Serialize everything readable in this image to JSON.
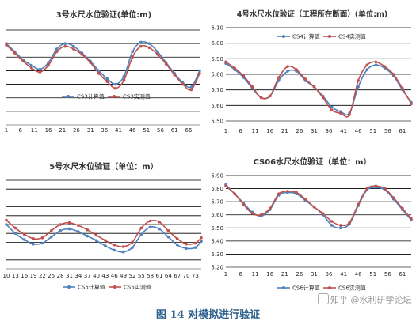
{
  "caption": "图 14 对模拟进行验证",
  "watermark": "知乎 @水利研学论坛",
  "colors": {
    "computed": "#4f81bd",
    "measured": "#c0504d",
    "grid": "#000000"
  },
  "chart_data": [
    {
      "type": "line",
      "title": "3号水尺水位验证(单位:m)",
      "show_y_ticks": false,
      "x_ticks": [
        1,
        6,
        11,
        16,
        21,
        26,
        31,
        36,
        41,
        46,
        51,
        56,
        61,
        66
      ],
      "xlim": [
        1,
        70
      ],
      "ylim": [
        0,
        7
      ],
      "grid_y": [
        1,
        2,
        3,
        4,
        5,
        6,
        7
      ],
      "legend": "bottom-center",
      "series": [
        {
          "name": "CS3计算值",
          "x": [
            1,
            4,
            7,
            10,
            13,
            16,
            19,
            22,
            25,
            28,
            31,
            34,
            37,
            40,
            43,
            46,
            49,
            52,
            55,
            58,
            61,
            64,
            67,
            70
          ],
          "y": [
            6.0,
            5.4,
            4.8,
            4.4,
            4.1,
            4.6,
            5.6,
            6.0,
            5.8,
            5.3,
            4.7,
            4.0,
            3.4,
            3.0,
            3.6,
            5.4,
            6.1,
            6.0,
            5.4,
            4.6,
            3.8,
            3.1,
            2.8,
            4.0
          ]
        },
        {
          "name": "CS3实测值",
          "x": [
            1,
            4,
            7,
            10,
            13,
            16,
            19,
            22,
            25,
            28,
            31,
            34,
            37,
            40,
            43,
            46,
            49,
            52,
            55,
            58,
            61,
            64,
            67,
            70
          ],
          "y": [
            5.9,
            5.3,
            4.7,
            4.2,
            3.9,
            4.4,
            5.4,
            5.8,
            5.6,
            5.2,
            4.6,
            3.8,
            3.2,
            2.7,
            3.3,
            5.0,
            5.8,
            5.7,
            5.2,
            4.5,
            3.7,
            3.0,
            2.6,
            3.8
          ]
        }
      ]
    },
    {
      "type": "line",
      "title": "4号水尺水位验证（工程所在断面）(单位:m)",
      "show_y_ticks": true,
      "y_ticks": [
        "5.50",
        "5.60",
        "5.70",
        "5.80",
        "5.90",
        "6.00",
        "6.10"
      ],
      "x_ticks": [
        1,
        6,
        11,
        16,
        21,
        26,
        31,
        36,
        41,
        46,
        51,
        56,
        61
      ],
      "xlim": [
        1,
        64
      ],
      "ylim": [
        5.5,
        6.1
      ],
      "grid_y": [
        5.5,
        5.6,
        5.7,
        5.8,
        5.9,
        6.0,
        6.1
      ],
      "legend": "top-center",
      "series": [
        {
          "name": "CS4计算值",
          "x": [
            1,
            4,
            7,
            10,
            13,
            16,
            19,
            22,
            25,
            28,
            31,
            34,
            37,
            40,
            43,
            46,
            49,
            52,
            55,
            58,
            61,
            64
          ],
          "y": [
            5.87,
            5.83,
            5.78,
            5.71,
            5.65,
            5.66,
            5.76,
            5.82,
            5.82,
            5.76,
            5.72,
            5.66,
            5.59,
            5.56,
            5.55,
            5.72,
            5.83,
            5.86,
            5.84,
            5.79,
            5.7,
            5.62
          ]
        },
        {
          "name": "CS4实测值",
          "x": [
            1,
            4,
            7,
            10,
            13,
            16,
            19,
            22,
            25,
            28,
            31,
            34,
            37,
            40,
            43,
            46,
            49,
            52,
            55,
            58,
            61,
            64
          ],
          "y": [
            5.88,
            5.84,
            5.79,
            5.72,
            5.65,
            5.66,
            5.78,
            5.85,
            5.83,
            5.77,
            5.72,
            5.65,
            5.57,
            5.55,
            5.54,
            5.76,
            5.86,
            5.88,
            5.85,
            5.8,
            5.71,
            5.61
          ]
        }
      ]
    },
    {
      "type": "line",
      "title": "5号水尺水位验证（单位：m）",
      "show_y_ticks": false,
      "x_ticks": [
        10,
        13,
        16,
        19,
        22,
        25,
        28,
        31,
        34,
        37,
        40,
        43,
        46,
        49,
        52,
        55,
        58,
        61,
        64,
        67,
        70,
        73
      ],
      "xlim": [
        10,
        75
      ],
      "ylim": [
        0,
        10
      ],
      "grid_y": [
        1,
        2,
        3,
        4,
        5,
        6,
        7,
        8,
        9,
        10
      ],
      "legend": "bottom-center",
      "series": [
        {
          "name": "CS5计算值",
          "x": [
            10,
            13,
            16,
            19,
            22,
            25,
            28,
            31,
            34,
            37,
            40,
            43,
            46,
            49,
            52,
            55,
            58,
            61,
            64,
            67,
            70,
            73,
            75
          ],
          "y": [
            5.0,
            4.0,
            3.3,
            2.8,
            2.9,
            3.6,
            4.3,
            4.5,
            4.2,
            3.7,
            3.2,
            2.6,
            2.1,
            1.9,
            2.4,
            3.9,
            4.7,
            4.5,
            3.6,
            2.7,
            2.3,
            2.4,
            3.1
          ]
        },
        {
          "name": "CS5实测值",
          "x": [
            10,
            13,
            16,
            19,
            22,
            25,
            28,
            31,
            34,
            37,
            40,
            43,
            46,
            49,
            52,
            55,
            58,
            61,
            64,
            67,
            70,
            73,
            75
          ],
          "y": [
            5.5,
            4.6,
            3.9,
            3.4,
            3.5,
            4.3,
            5.0,
            5.2,
            4.9,
            4.4,
            3.8,
            3.2,
            2.7,
            2.5,
            3.0,
            4.6,
            5.4,
            5.3,
            4.3,
            3.4,
            2.8,
            2.9,
            3.5
          ]
        }
      ]
    },
    {
      "type": "line",
      "title": "CS06水尺水位验证（单位：m）",
      "show_y_ticks": true,
      "y_ticks": [
        "5.20",
        "5.30",
        "5.40",
        "5.50",
        "5.60",
        "5.70",
        "5.80",
        "5.90"
      ],
      "x_ticks": [
        1,
        6,
        11,
        16,
        21,
        26,
        31,
        36,
        41,
        46,
        51,
        56,
        61
      ],
      "xlim": [
        1,
        64
      ],
      "ylim": [
        5.2,
        5.9
      ],
      "grid_y": [
        5.2,
        5.3,
        5.4,
        5.5,
        5.6,
        5.7,
        5.8,
        5.9
      ],
      "legend": "bottom-center",
      "series": [
        {
          "name": "CS6计算值",
          "x": [
            1,
            4,
            7,
            10,
            13,
            16,
            19,
            22,
            25,
            28,
            31,
            34,
            37,
            40,
            43,
            46,
            49,
            52,
            55,
            58,
            61,
            64
          ],
          "y": [
            5.83,
            5.76,
            5.69,
            5.62,
            5.59,
            5.64,
            5.75,
            5.77,
            5.76,
            5.71,
            5.66,
            5.6,
            5.52,
            5.5,
            5.53,
            5.67,
            5.79,
            5.81,
            5.79,
            5.72,
            5.64,
            5.56
          ]
        },
        {
          "name": "CS6实测值",
          "x": [
            1,
            4,
            7,
            10,
            13,
            16,
            19,
            22,
            25,
            28,
            31,
            34,
            37,
            40,
            43,
            46,
            49,
            52,
            55,
            58,
            61,
            64
          ],
          "y": [
            5.82,
            5.76,
            5.68,
            5.61,
            5.6,
            5.65,
            5.76,
            5.78,
            5.77,
            5.72,
            5.66,
            5.61,
            5.55,
            5.52,
            5.54,
            5.68,
            5.8,
            5.82,
            5.8,
            5.73,
            5.65,
            5.57
          ]
        }
      ]
    }
  ]
}
